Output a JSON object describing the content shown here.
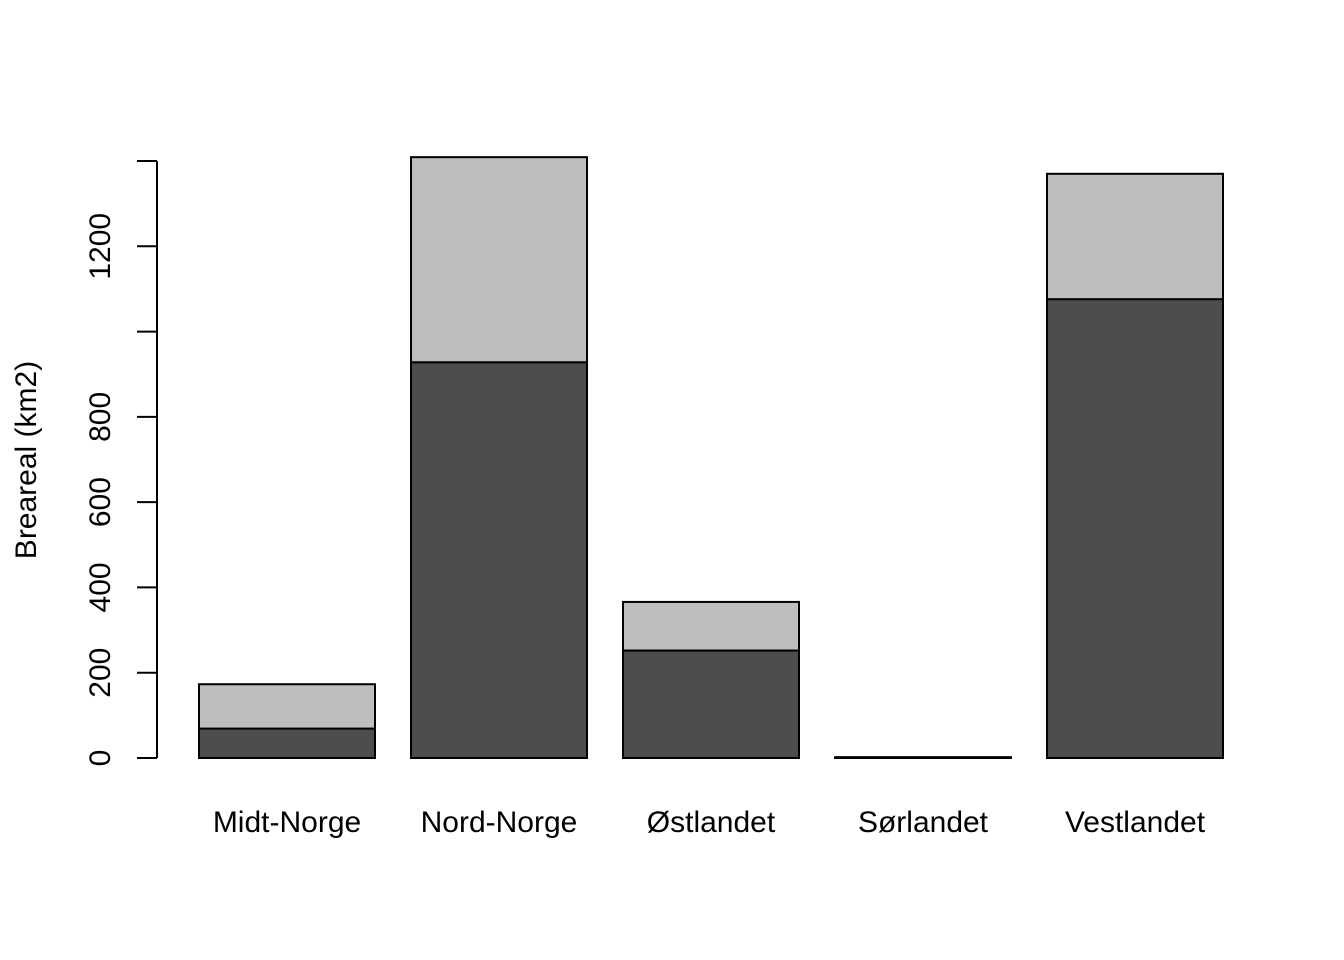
{
  "chart_data": {
    "type": "bar",
    "stacked": true,
    "title": "",
    "xlabel": "",
    "ylabel": "Breareal (km2)",
    "categories": [
      "Midt-Norge",
      "Nord-Norge",
      "Østlandet",
      "Sørlandet",
      "Vestlandet"
    ],
    "series": [
      {
        "values": [
          69,
          928,
          252,
          2,
          1076
        ],
        "color": "#4d4d4d"
      },
      {
        "values": [
          104,
          481,
          114,
          0,
          294
        ],
        "color": "#bebebe"
      }
    ],
    "yticks": [
      0,
      200,
      400,
      600,
      800,
      1000,
      1200,
      1400
    ],
    "ytick_labels": [
      "0",
      "200",
      "400",
      "600",
      "800",
      "",
      "1200",
      ""
    ],
    "ylim": [
      0,
      1400
    ],
    "grid": false,
    "legend": "none"
  }
}
